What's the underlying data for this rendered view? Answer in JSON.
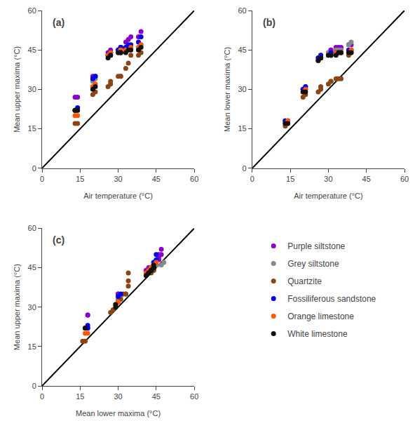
{
  "chart_data": [
    {
      "type": "scatter",
      "title": "(a)",
      "xlabel": "Air temperature (°C)",
      "ylabel": "Mean upper maxima (°C)",
      "xlim": [
        0,
        60
      ],
      "ylim": [
        0,
        60
      ],
      "xticks": [
        0,
        15,
        30,
        45,
        60
      ],
      "yticks": [
        0,
        15,
        30,
        45,
        60
      ],
      "grid": false,
      "legend": "lower right",
      "series": [
        {
          "name": "Purple siltstone",
          "color": "#8B00CC",
          "x": [
            13,
            14,
            20,
            21,
            26,
            27,
            27,
            30,
            31,
            31,
            33,
            34,
            35,
            38,
            39
          ],
          "values": [
            27,
            27,
            35,
            35,
            44,
            44,
            45,
            45,
            46,
            46,
            48,
            49,
            50,
            50,
            52
          ]
        },
        {
          "name": "Grey siltstone",
          "color": "#888888",
          "x": [
            13,
            14,
            20,
            21,
            26,
            27,
            27,
            30,
            31,
            31,
            33,
            34,
            35,
            38,
            39
          ],
          "values": [
            22,
            22,
            33,
            34,
            43,
            44,
            44,
            44,
            44,
            45,
            46,
            46,
            46,
            46,
            47
          ]
        },
        {
          "name": "Quartzite",
          "color": "#8B4513",
          "x": [
            13,
            14,
            20,
            21,
            26,
            27,
            27,
            30,
            31,
            31,
            33,
            34,
            35,
            38,
            39
          ],
          "values": [
            17,
            17,
            28,
            29,
            31,
            32,
            33,
            35,
            35,
            35,
            38,
            40,
            43,
            43,
            44
          ]
        },
        {
          "name": "Fossiliferous sandstone",
          "color": "#0000EE",
          "x": [
            13,
            14,
            20,
            21,
            26,
            27,
            27,
            30,
            31,
            31,
            33,
            34,
            35,
            38,
            39
          ],
          "values": [
            22,
            23,
            34,
            35,
            43,
            44,
            44,
            45,
            46,
            46,
            46,
            47,
            47,
            48,
            50
          ]
        },
        {
          "name": "Orange limestone",
          "color": "#FF5500",
          "x": [
            13,
            14,
            20,
            21,
            26,
            27,
            27,
            30,
            31,
            31,
            33,
            34,
            35,
            38,
            39
          ],
          "values": [
            20,
            20,
            31,
            32,
            43,
            43,
            44,
            44,
            45,
            45,
            45,
            45,
            46,
            46,
            47
          ]
        },
        {
          "name": "White limestone",
          "color": "#111111",
          "x": [
            13,
            14,
            20,
            21,
            26,
            27,
            27,
            30,
            31,
            31,
            33,
            34,
            35,
            38,
            39
          ],
          "values": [
            22,
            22,
            30,
            31,
            42,
            43,
            43,
            44,
            44,
            44,
            44,
            45,
            45,
            45,
            46
          ]
        }
      ]
    },
    {
      "type": "scatter",
      "title": "(b)",
      "xlabel": "Air temperature (°C)",
      "ylabel": "Mean lower maxima (°C)",
      "xlim": [
        0,
        60
      ],
      "ylim": [
        0,
        60
      ],
      "xticks": [
        0,
        15,
        30,
        45,
        60
      ],
      "yticks": [
        0,
        15,
        30,
        45,
        60
      ],
      "grid": false,
      "series": [
        {
          "name": "Purple siltstone",
          "color": "#8B00CC",
          "x": [
            13,
            14,
            20,
            21,
            26,
            27,
            27,
            30,
            31,
            31,
            33,
            34,
            35,
            38,
            39
          ],
          "values": [
            18,
            18,
            30,
            30,
            41,
            42,
            42,
            44,
            45,
            45,
            46,
            46,
            46,
            47,
            47
          ]
        },
        {
          "name": "Grey siltstone",
          "color": "#888888",
          "x": [
            13,
            14,
            20,
            21,
            26,
            27,
            27,
            30,
            31,
            31,
            33,
            34,
            35,
            38,
            39
          ],
          "values": [
            18,
            18,
            30,
            31,
            42,
            43,
            43,
            44,
            44,
            44,
            45,
            45,
            45,
            47,
            48
          ]
        },
        {
          "name": "Quartzite",
          "color": "#8B4513",
          "x": [
            13,
            14,
            20,
            21,
            26,
            27,
            27,
            30,
            31,
            31,
            33,
            34,
            35,
            38,
            39
          ],
          "values": [
            16,
            17,
            27,
            28,
            29,
            30,
            31,
            32,
            33,
            33,
            34,
            34,
            34,
            43,
            44
          ]
        },
        {
          "name": "Fossiliferous sandstone",
          "color": "#0000EE",
          "x": [
            13,
            14,
            20,
            21,
            26,
            27,
            27,
            30,
            31,
            31,
            33,
            34,
            35,
            38,
            39
          ],
          "values": [
            18,
            18,
            30,
            31,
            42,
            42,
            43,
            43,
            44,
            44,
            44,
            44,
            44,
            45,
            45
          ]
        },
        {
          "name": "Orange limestone",
          "color": "#FF5500",
          "x": [
            13,
            14,
            20,
            21,
            26,
            27,
            27,
            30,
            31,
            31,
            33,
            34,
            35,
            38,
            39
          ],
          "values": [
            17,
            18,
            29,
            30,
            41,
            42,
            42,
            43,
            43,
            43,
            44,
            44,
            44,
            44,
            45
          ]
        },
        {
          "name": "White limestone",
          "color": "#111111",
          "x": [
            13,
            14,
            20,
            21,
            26,
            27,
            27,
            30,
            31,
            31,
            33,
            34,
            35,
            38,
            39
          ],
          "values": [
            17,
            17,
            29,
            29,
            41,
            42,
            42,
            43,
            43,
            43,
            43,
            44,
            44,
            44,
            44
          ]
        }
      ]
    },
    {
      "type": "scatter",
      "title": "(c)",
      "xlabel": "Mean lower maxima (°C)",
      "ylabel": "Mean upper maxima (°C)",
      "xlim": [
        0,
        60
      ],
      "ylim": [
        0,
        60
      ],
      "xticks": [
        0,
        15,
        30,
        45,
        60
      ],
      "yticks": [
        0,
        15,
        30,
        45,
        60
      ],
      "grid": false,
      "series": [
        {
          "name": "Purple siltstone",
          "color": "#8B00CC",
          "x": [
            18,
            18,
            30,
            30,
            41,
            42,
            42,
            44,
            45,
            45,
            46,
            46,
            46,
            47,
            47
          ],
          "values": [
            27,
            27,
            35,
            35,
            44,
            44,
            45,
            45,
            46,
            46,
            48,
            49,
            50,
            50,
            52
          ]
        },
        {
          "name": "Grey siltstone",
          "color": "#888888",
          "x": [
            18,
            18,
            30,
            31,
            42,
            43,
            43,
            44,
            44,
            44,
            45,
            45,
            45,
            47,
            48
          ],
          "values": [
            22,
            22,
            33,
            34,
            43,
            44,
            44,
            44,
            44,
            45,
            46,
            46,
            46,
            46,
            47
          ]
        },
        {
          "name": "Quartzite",
          "color": "#8B4513",
          "x": [
            16,
            17,
            27,
            28,
            29,
            30,
            31,
            32,
            33,
            33,
            34,
            34,
            34,
            43,
            44
          ],
          "values": [
            17,
            17,
            28,
            29,
            31,
            32,
            33,
            35,
            35,
            35,
            38,
            40,
            43,
            43,
            44
          ]
        },
        {
          "name": "Fossiliferous sandstone",
          "color": "#0000EE",
          "x": [
            18,
            18,
            30,
            31,
            42,
            42,
            43,
            43,
            44,
            44,
            44,
            44,
            44,
            45,
            45
          ],
          "values": [
            22,
            23,
            34,
            35,
            43,
            44,
            44,
            45,
            46,
            46,
            46,
            47,
            47,
            48,
            50
          ]
        },
        {
          "name": "Orange limestone",
          "color": "#FF5500",
          "x": [
            17,
            18,
            29,
            30,
            41,
            42,
            42,
            43,
            43,
            43,
            44,
            44,
            44,
            44,
            45
          ],
          "values": [
            20,
            20,
            31,
            32,
            43,
            43,
            44,
            44,
            45,
            45,
            45,
            45,
            46,
            46,
            47
          ]
        },
        {
          "name": "White limestone",
          "color": "#111111",
          "x": [
            17,
            17,
            29,
            29,
            41,
            42,
            42,
            43,
            43,
            43,
            43,
            44,
            44,
            44,
            44
          ],
          "values": [
            22,
            22,
            30,
            31,
            42,
            43,
            43,
            44,
            44,
            44,
            44,
            45,
            45,
            45,
            46
          ]
        }
      ]
    }
  ]
}
